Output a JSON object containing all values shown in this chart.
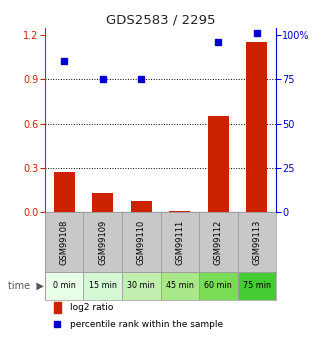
{
  "title": "GDS2583 / 2295",
  "samples": [
    "GSM99108",
    "GSM99109",
    "GSM99110",
    "GSM99111",
    "GSM99112",
    "GSM99113"
  ],
  "time_labels": [
    "0 min",
    "15 min",
    "30 min",
    "45 min",
    "60 min",
    "75 min"
  ],
  "log2_ratio": [
    0.27,
    0.13,
    0.08,
    0.01,
    0.65,
    1.15
  ],
  "percentile_rank": [
    0.82,
    0.72,
    0.72,
    null,
    0.92,
    0.97
  ],
  "left_yticks": [
    0,
    0.3,
    0.6,
    0.9,
    1.2
  ],
  "right_yticks": [
    0,
    25,
    50,
    75,
    100
  ],
  "right_ytick_labels": [
    "0",
    "25",
    "50",
    "75",
    "100%"
  ],
  "bar_color": "#cc2200",
  "dot_color": "#0000cc",
  "grid_color": "#000000",
  "bg_color": "#ffffff",
  "time_bg_colors": [
    "#e8ffe8",
    "#d4f7d4",
    "#c0efb0",
    "#a8e888",
    "#78dd55",
    "#44cc33"
  ],
  "sample_bg_color": "#c8c8c8",
  "left_axis_color": "#cc2200",
  "right_axis_color": "#0000cc",
  "ylim_left": [
    0,
    1.25
  ],
  "ylim_right": [
    0,
    104.2
  ]
}
